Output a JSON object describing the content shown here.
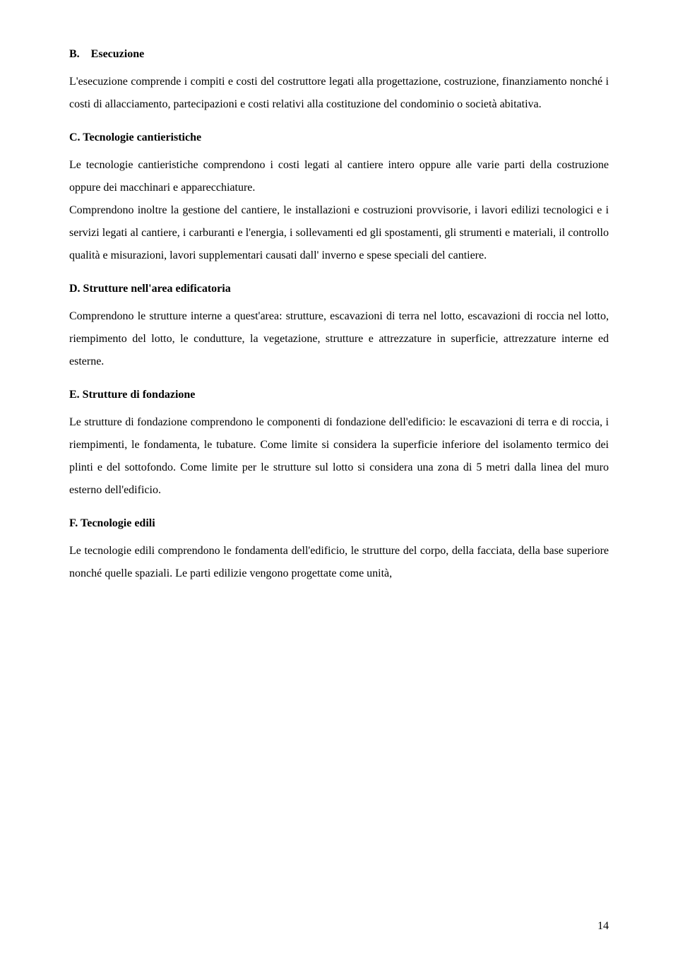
{
  "sections": {
    "b": {
      "heading": "B.    Esecuzione",
      "body": "L'esecuzione comprende i compiti e costi del costruttore legati alla progettazione, costruzione, finanziamento nonché i costi di allacciamento, partecipazioni e costi relativi alla costituzione del condominio o società abitativa."
    },
    "c": {
      "heading": "C. Tecnologie cantieristiche",
      "body": "Le tecnologie cantieristiche comprendono i costi legati al cantiere intero oppure alle varie parti della costruzione oppure dei macchinari e apparecchiature.",
      "body2": "Comprendono inoltre la gestione del cantiere, le installazioni e costruzioni provvisorie, i lavori edilizi tecnologici e i servizi legati al cantiere, i carburanti e l'energia, i sollevamenti ed gli spostamenti, gli strumenti e materiali, il controllo qualità e misurazioni, lavori supplementari causati dall' inverno e spese speciali del cantiere."
    },
    "d": {
      "heading": "D. Strutture nell'area edificatoria",
      "body": "Comprendono le strutture interne a quest'area: strutture, escavazioni di terra nel lotto, escavazioni di roccia nel lotto, riempimento del lotto, le condutture, la vegetazione, strutture e attrezzature in superficie, attrezzature interne  ed esterne."
    },
    "e": {
      "heading": "E. Strutture di fondazione",
      "body": "Le  strutture di fondazione comprendono le componenti di fondazione dell'edificio: le escavazioni di terra e di roccia, i riempimenti, le fondamenta, le tubature. Come limite si considera la superficie inferiore del isolamento termico dei plinti e del sottofondo. Come limite per le strutture sul lotto si considera una zona di 5 metri dalla linea del muro esterno dell'edificio."
    },
    "f": {
      "heading": "F. Tecnologie edili",
      "body": "Le tecnologie edili comprendono le fondamenta dell'edificio, le strutture del corpo, della facciata, della base superiore nonché quelle spaziali. Le parti edilizie vengono progettate come unità,"
    }
  },
  "pageNumber": "14"
}
